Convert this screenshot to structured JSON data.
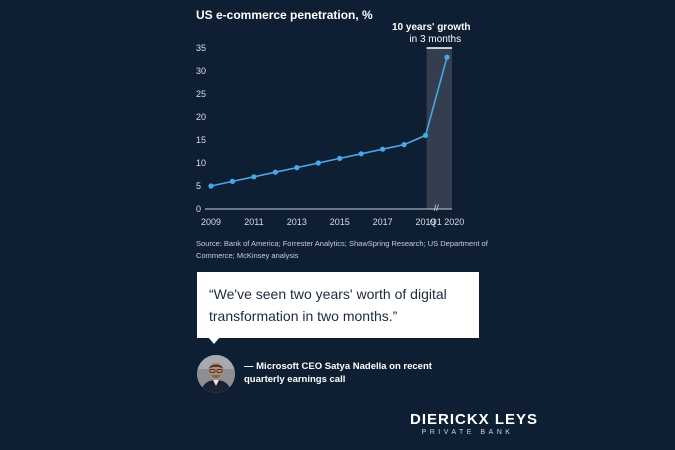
{
  "chart_data": {
    "type": "line",
    "title": "US e-commerce penetration, %",
    "x": [
      "2009",
      "2010",
      "2011",
      "2012",
      "2013",
      "2014",
      "2015",
      "2016",
      "2017",
      "2018",
      "2019",
      "Q1 2020"
    ],
    "values": [
      5,
      6,
      7,
      8,
      9,
      10,
      11,
      12,
      13,
      14,
      16,
      33
    ],
    "x_tick_labels": [
      "2009",
      "2011",
      "2013",
      "2015",
      "2017",
      "2019",
      "Q1 2020"
    ],
    "y_ticks": [
      0,
      5,
      10,
      15,
      20,
      25,
      30,
      35
    ],
    "ylim": [
      0,
      35
    ],
    "xlabel": "",
    "ylabel": "",
    "grid": false,
    "highlight": {
      "from": "2019",
      "to": "Q1 2020",
      "label_line1": "10 years' growth",
      "label_line2": "in 3 months"
    },
    "axis_break_mark": "//",
    "source": "Source: Bank of America; Forrester Analytics; ShawSpring Research; US Department of Commerce; McKinsey analysis",
    "line_color": "#4aa8e8",
    "highlight_color": "#3a4553"
  },
  "quote": {
    "text": "“We've seen two years' worth of digital transformation in two months.”"
  },
  "attribution": {
    "text": "— Microsoft CEO Satya Nadella on recent quarterly earnings call"
  },
  "brand": {
    "name": "DIERICKX LEYS",
    "tagline": "PRIVATE BANK"
  }
}
